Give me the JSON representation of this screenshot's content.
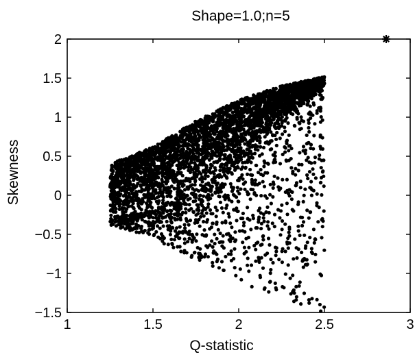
{
  "chart_data": {
    "type": "scatter",
    "title": "Shape=1.0;n=5",
    "xlabel": "Q-statistic",
    "ylabel": "Skewness",
    "xlim": [
      1,
      3
    ],
    "ylim": [
      -1.5,
      2
    ],
    "xticks": [
      "1",
      "1.5",
      "2",
      "2.5",
      "3"
    ],
    "yticks": [
      "-1.5",
      "-1",
      "-0.5",
      "0",
      "0.5",
      "1",
      "1.5",
      "2"
    ],
    "grid": false,
    "legend": "none",
    "marker_color": "#000000",
    "series": [
      {
        "marker": "dot",
        "description_region": {
          "x_min": 1.25,
          "x_max": 2.5,
          "upper_envelope": [
            [
              1.25,
              0.4
            ],
            [
              1.5,
              0.62
            ],
            [
              1.75,
              0.95
            ],
            [
              2.0,
              1.22
            ],
            [
              2.25,
              1.4
            ],
            [
              2.5,
              1.52
            ]
          ],
          "lower_envelope": [
            [
              1.25,
              -0.38
            ],
            [
              1.5,
              -0.55
            ],
            [
              1.75,
              -0.82
            ],
            [
              2.0,
              -1.1
            ],
            [
              2.25,
              -1.35
            ],
            [
              2.5,
              -1.5
            ]
          ],
          "dense_lower_boundary": [
            [
              1.25,
              -0.3
            ],
            [
              1.5,
              -0.2
            ],
            [
              1.75,
              0.05
            ],
            [
              2.0,
              0.45
            ],
            [
              2.25,
              0.95
            ],
            [
              2.5,
              1.4
            ]
          ]
        }
      },
      {
        "marker": "asterisk",
        "points": [
          [
            2.86,
            2.0
          ]
        ]
      }
    ]
  }
}
